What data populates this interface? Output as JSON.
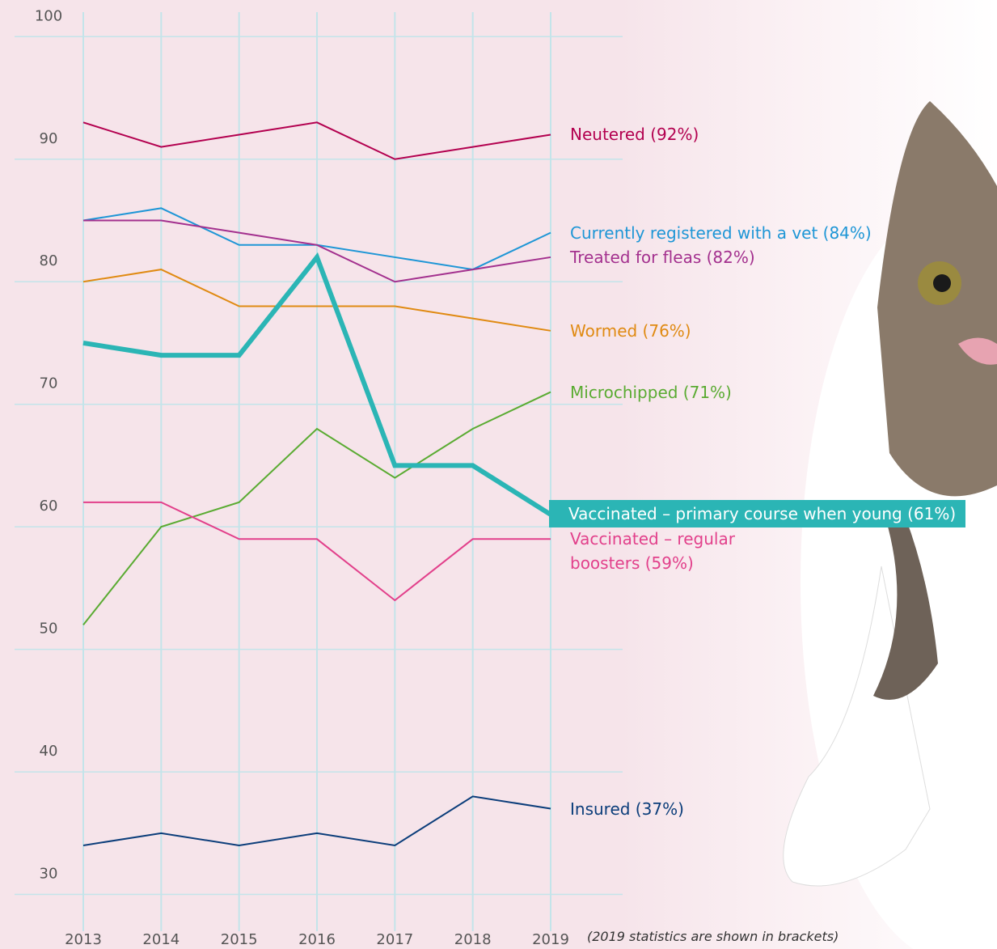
{
  "chart_data": {
    "type": "line",
    "note": "(2019 statistics are shown in brackets)",
    "categories": [
      "2013",
      "2014",
      "2015",
      "2016",
      "2017",
      "2018",
      "2019"
    ],
    "ylim": [
      27,
      102
    ],
    "yticks": [
      30,
      40,
      50,
      60,
      70,
      80,
      90,
      100
    ],
    "grid": true,
    "series": [
      {
        "name": "Neutered (92%)",
        "color": "#b3004f",
        "values": [
          93,
          91,
          92,
          93,
          90,
          91,
          92
        ]
      },
      {
        "name": "Currently registered with a vet (84%)",
        "color": "#1e96d6",
        "values": [
          85,
          86,
          83,
          83,
          82,
          81,
          84
        ]
      },
      {
        "name": "Treated for fleas (82%)",
        "color": "#a3308e",
        "values": [
          85,
          85,
          84,
          83,
          80,
          81,
          82
        ]
      },
      {
        "name": "Wormed (76%)",
        "color": "#e08a12",
        "values": [
          80,
          81,
          78,
          78,
          78,
          77,
          76
        ]
      },
      {
        "name": "Microchipped (71%)",
        "color": "#5aab32",
        "values": [
          52,
          60,
          62,
          68,
          64,
          68,
          71
        ]
      },
      {
        "name": "Vaccinated – primary course when young (61%)",
        "color": "#2bb5b5",
        "highlight": true,
        "values": [
          75,
          74,
          74,
          82,
          65,
          65,
          61
        ]
      },
      {
        "name": "Vaccinated – regular boosters (59%)",
        "color": "#e2408b",
        "values": [
          62,
          62,
          59,
          59,
          54,
          59,
          59
        ]
      },
      {
        "name": "Insured (37%)",
        "color": "#0b3d7a",
        "values": [
          34,
          35,
          34,
          35,
          34,
          38,
          37
        ]
      }
    ]
  }
}
